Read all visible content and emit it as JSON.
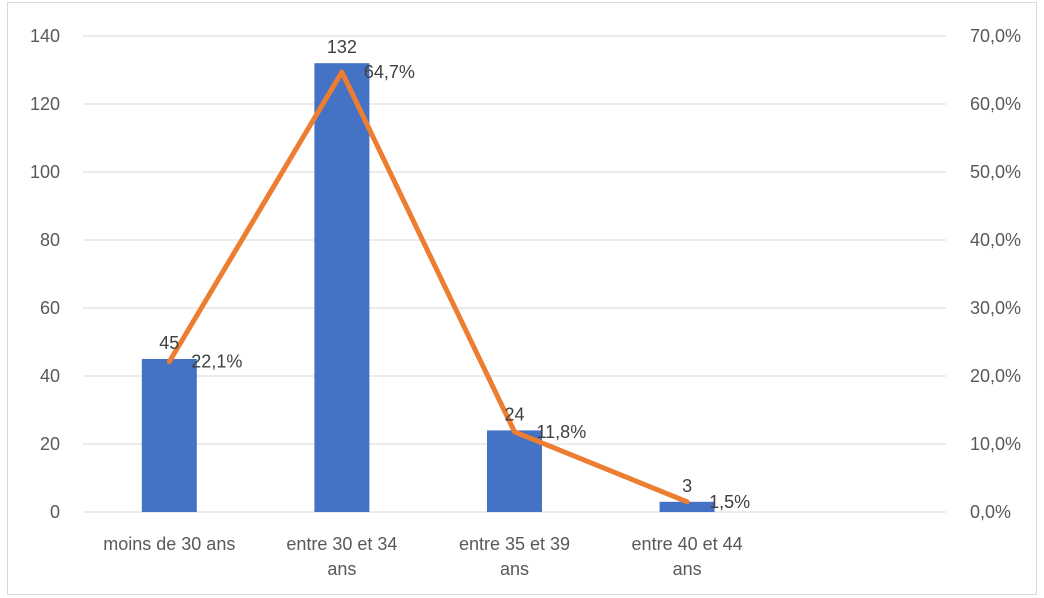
{
  "chart_data": {
    "type": "bar",
    "categories": [
      [
        "moins de 30 ans"
      ],
      [
        "entre 30 et 34",
        "ans"
      ],
      [
        "entre 35 et 39",
        "ans"
      ],
      [
        "entre 40 et 44",
        "ans"
      ]
    ],
    "series": [
      {
        "type": "bar",
        "values": [
          45,
          132,
          24,
          3
        ],
        "value_labels": [
          "45",
          "132",
          "24",
          "3"
        ],
        "color": "#4472c4",
        "axis": "left"
      },
      {
        "type": "line",
        "values": [
          22.1,
          64.7,
          11.8,
          1.5
        ],
        "value_labels": [
          "22,1%",
          "64,7%",
          "11,8%",
          "1,5%"
        ],
        "color": "#ed7d31",
        "axis": "right"
      }
    ],
    "ylim_left": [
      0,
      140
    ],
    "yticks_left": [
      "0",
      "20",
      "40",
      "60",
      "80",
      "100",
      "120",
      "140"
    ],
    "ylim_right": [
      0,
      70
    ],
    "yticks_right": [
      "0,0%",
      "10,0%",
      "20,0%",
      "30,0%",
      "40,0%",
      "50,0%",
      "60,0%",
      "70,0%"
    ],
    "grid": true,
    "legend": "none"
  }
}
